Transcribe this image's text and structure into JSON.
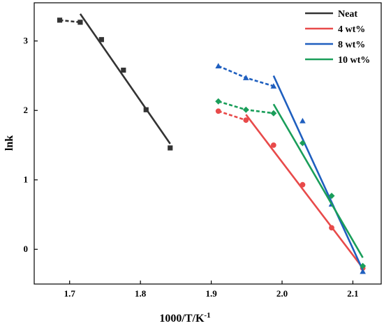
{
  "chart_data": {
    "type": "scatter",
    "xlabel": "1000/T/K",
    "xlabel_superscript": "-1",
    "ylabel": "lnk",
    "xlim": [
      1.65,
      2.14
    ],
    "ylim": [
      -0.5,
      3.55
    ],
    "xticks": [
      "1.7",
      "1.8",
      "1.9",
      "2.0",
      "2.1"
    ],
    "yticks": [
      "0",
      "1",
      "2",
      "3"
    ],
    "legend_position": "top-right",
    "series": [
      {
        "name": "Neat",
        "color": "#333333",
        "marker": "square",
        "x": [
          1.686,
          1.715,
          1.745,
          1.776,
          1.808,
          1.842
        ],
        "y": [
          3.3,
          3.27,
          3.02,
          2.58,
          2.01,
          1.46
        ],
        "dashed_fit": {
          "x": [
            1.686,
            1.715
          ],
          "y": [
            3.3,
            3.27
          ]
        },
        "solid_fit": {
          "x": [
            1.715,
            1.842
          ],
          "y": [
            3.39,
            1.52
          ]
        }
      },
      {
        "name": "4 wt%",
        "color": "#e84a4a",
        "marker": "circle",
        "x": [
          1.91,
          1.949,
          1.988,
          2.029,
          2.07,
          2.114
        ],
        "y": [
          1.99,
          1.86,
          1.5,
          0.93,
          0.31,
          -0.27
        ],
        "dashed_fit": {
          "x": [
            1.91,
            1.949
          ],
          "y": [
            1.99,
            1.86
          ]
        },
        "solid_fit": {
          "x": [
            1.949,
            2.114
          ],
          "y": [
            1.94,
            -0.27
          ]
        }
      },
      {
        "name": "8 wt%",
        "color": "#1f5fbf",
        "marker": "triangle",
        "x": [
          1.91,
          1.949,
          1.988,
          2.029,
          2.07,
          2.114
        ],
        "y": [
          2.64,
          2.47,
          2.35,
          1.85,
          0.65,
          -0.32
        ],
        "dashed_fit": {
          "x": [
            1.91,
            1.949,
            1.988
          ],
          "y": [
            2.64,
            2.47,
            2.35
          ]
        },
        "solid_fit": {
          "x": [
            1.988,
            2.114
          ],
          "y": [
            2.5,
            -0.3
          ]
        }
      },
      {
        "name": "10 wt%",
        "color": "#1a9e5a",
        "marker": "diamond",
        "x": [
          1.91,
          1.949,
          1.988,
          2.029,
          2.07,
          2.114
        ],
        "y": [
          2.13,
          2.01,
          1.96,
          1.53,
          0.77,
          -0.24
        ],
        "dashed_fit": {
          "x": [
            1.91,
            1.949,
            1.988
          ],
          "y": [
            2.13,
            2.01,
            1.96
          ]
        },
        "solid_fit": {
          "x": [
            1.988,
            2.114
          ],
          "y": [
            2.09,
            -0.12
          ]
        }
      }
    ]
  }
}
